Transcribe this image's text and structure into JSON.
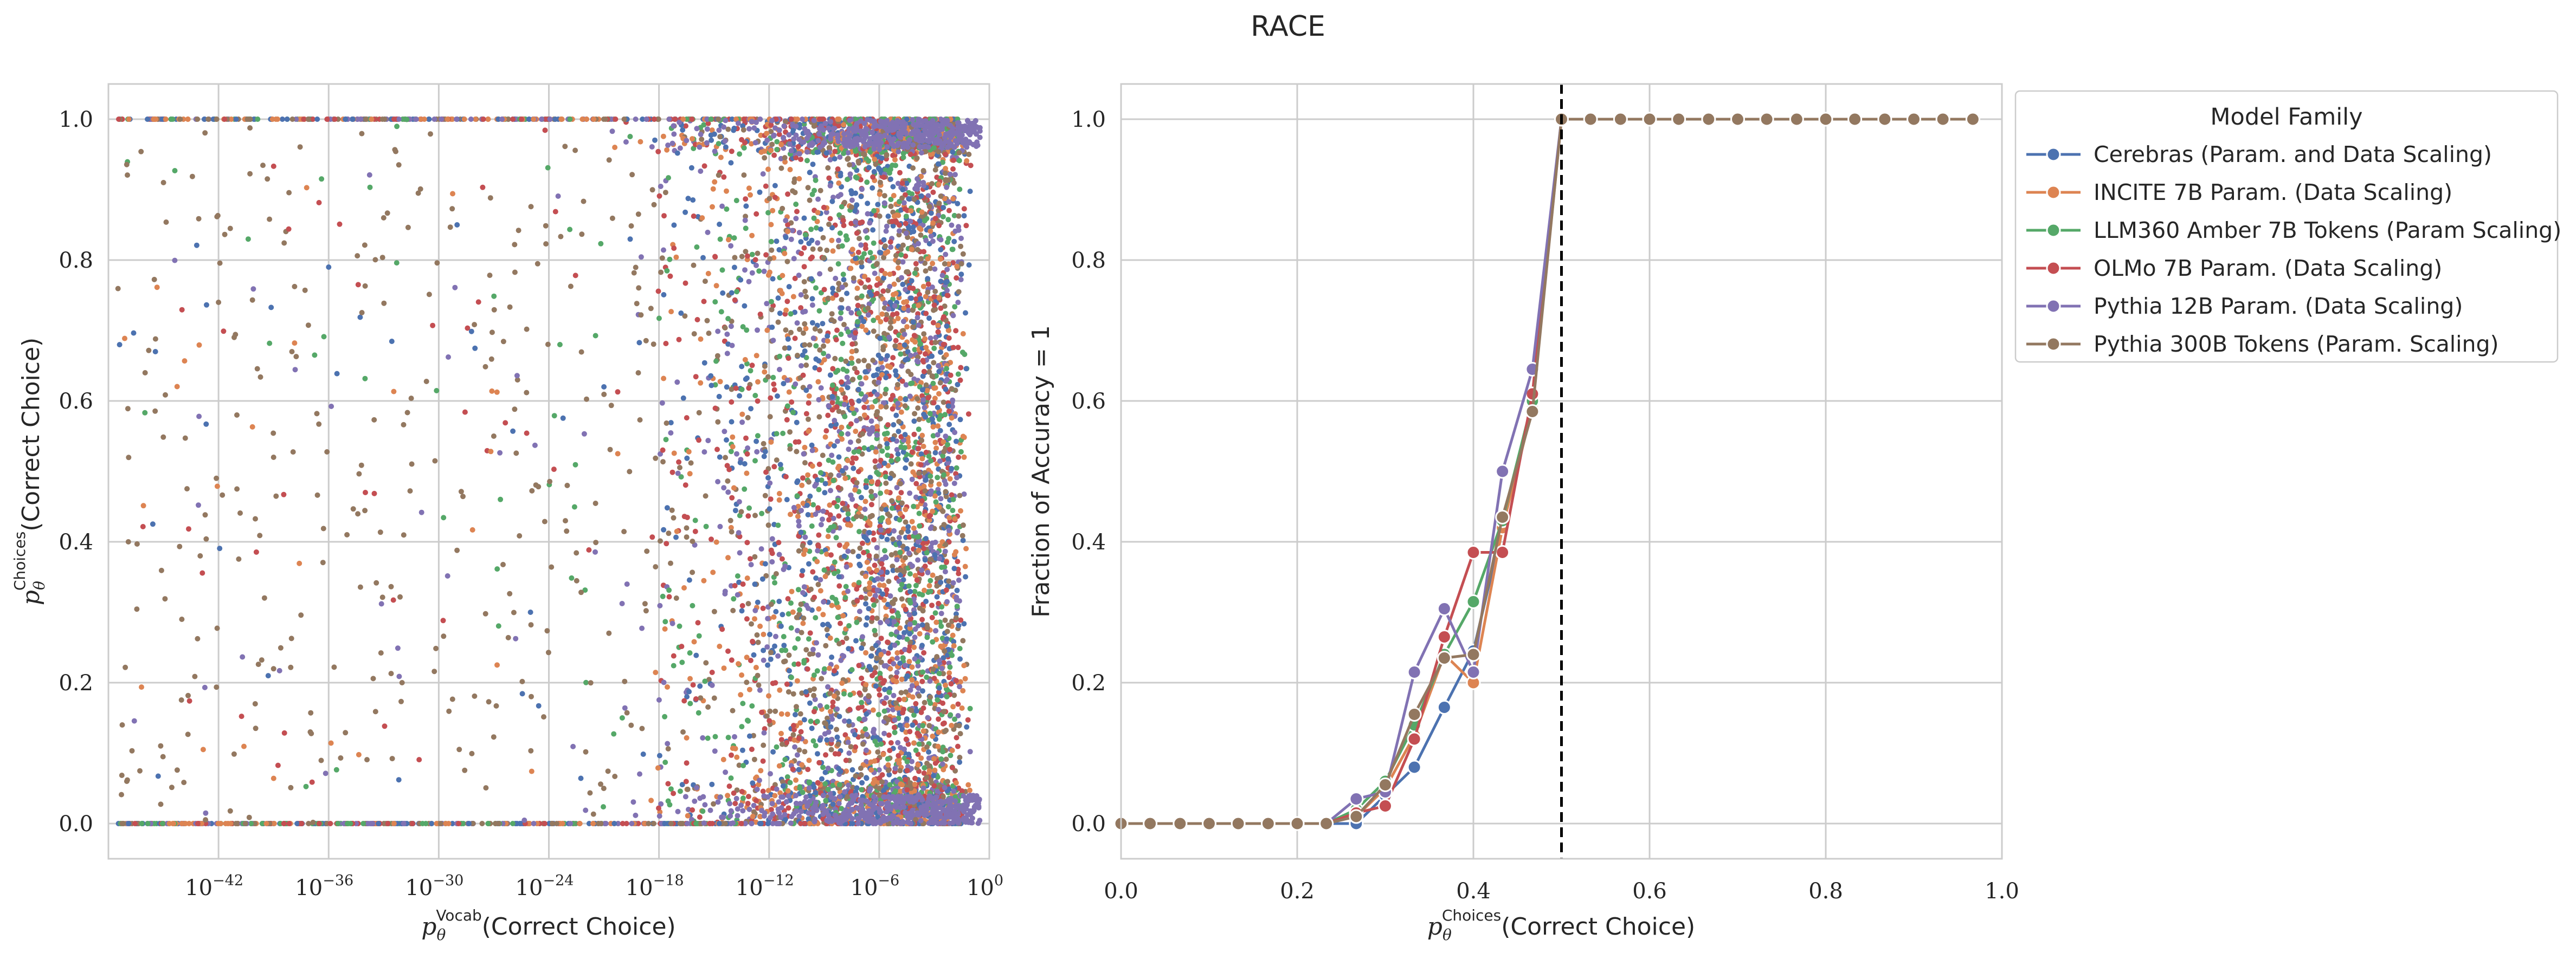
{
  "figure_title": "RACE",
  "colors": {
    "Cerebras": "#4c72b0",
    "INCITE": "#dd8452",
    "LLM360": "#55a868",
    "OLMo": "#c44e52",
    "Pythia12B": "#8172b3",
    "Pythia300B": "#937860"
  },
  "chart_data": [
    {
      "type": "scatter",
      "title": "",
      "xlabel_main": "p",
      "xlabel_sub": "θ",
      "xlabel_sup": "Vocab",
      "xlabel_rest": "(Correct Choice)",
      "ylabel_main": "p",
      "ylabel_sub": "θ",
      "ylabel_sup": "Choices",
      "ylabel_rest": "(Correct Choice)",
      "xscale": "log",
      "xlim_exponent": [
        -48,
        0
      ],
      "ylim": [
        -0.05,
        1.05
      ],
      "xtick_exponents": [
        -42,
        -36,
        -30,
        -24,
        -18,
        -12,
        -6,
        0
      ],
      "xtick_base": "10",
      "yticks": [
        "0.0",
        "0.2",
        "0.4",
        "0.6",
        "0.8",
        "1.0"
      ],
      "grid": true,
      "note_series": [
        "Cerebras",
        "INCITE",
        "LLM360",
        "OLMo",
        "Pythia12B",
        "Pythia300B"
      ],
      "points_sample": [
        {
          "series": "Pythia300B",
          "x_exp": -47,
          "y": 0.06
        },
        {
          "series": "Pythia300B",
          "x_exp": -46,
          "y": 0.64
        },
        {
          "series": "Pythia300B",
          "x_exp": -45,
          "y": 0.91
        },
        {
          "series": "Pythia300B",
          "x_exp": -44,
          "y": 0.29
        },
        {
          "series": "Pythia300B",
          "x_exp": -43,
          "y": 0.38
        },
        {
          "series": "Pythia300B",
          "x_exp": -42,
          "y": 0.74
        },
        {
          "series": "Pythia300B",
          "x_exp": -41,
          "y": 0.58
        },
        {
          "series": "Pythia300B",
          "x_exp": -40,
          "y": 0.17
        },
        {
          "series": "Pythia300B",
          "x_exp": -39,
          "y": 0.52
        },
        {
          "series": "Pythia300B",
          "x_exp": -38,
          "y": 0.67
        },
        {
          "series": "Pythia300B",
          "x_exp": -37,
          "y": 0.13
        },
        {
          "series": "Cerebras",
          "x_exp": -36,
          "y": 0.79
        },
        {
          "series": "Pythia300B",
          "x_exp": -35,
          "y": 0.41
        },
        {
          "series": "OLMo",
          "x_exp": -34,
          "y": 0.47
        },
        {
          "series": "Pythia300B",
          "x_exp": -33,
          "y": 0.86
        },
        {
          "series": "Pythia300B",
          "x_exp": -32,
          "y": 0.2
        },
        {
          "series": "Cerebras",
          "x_exp": -29,
          "y": 0.85
        },
        {
          "series": "Pythia300B",
          "x_exp": -27,
          "y": 0.55
        },
        {
          "series": "Cerebras",
          "x_exp": -25,
          "y": 0.3
        },
        {
          "series": "Pythia300B",
          "x_exp": -23,
          "y": 0.48
        },
        {
          "series": "Cerebras",
          "x_exp": -21,
          "y": 0.62
        },
        {
          "series": "LLM360",
          "x_exp": -20,
          "y": 0.15
        }
      ]
    },
    {
      "type": "line",
      "title": "",
      "xlabel_main": "p",
      "xlabel_sub": "θ",
      "xlabel_sup": "Choices",
      "xlabel_rest": "(Correct Choice)",
      "ylabel": "Fraction of Accuracy = 1",
      "xlim": [
        0.0,
        1.0
      ],
      "ylim": [
        -0.05,
        1.05
      ],
      "xticks": [
        "0.0",
        "0.2",
        "0.4",
        "0.6",
        "0.8",
        "1.0"
      ],
      "yticks": [
        "0.0",
        "0.2",
        "0.4",
        "0.6",
        "0.8",
        "1.0"
      ],
      "grid": true,
      "vline": {
        "x": 0.5,
        "style": "dashed",
        "color": "#000000"
      },
      "legend": {
        "title": "Model Family",
        "placement": "outside right"
      },
      "x": [
        0.0,
        0.033,
        0.067,
        0.1,
        0.133,
        0.167,
        0.2,
        0.233,
        0.267,
        0.3,
        0.333,
        0.367,
        0.4,
        0.433,
        0.467,
        0.5,
        0.533,
        0.567,
        0.6,
        0.633,
        0.667,
        0.7,
        0.733,
        0.767,
        0.8,
        0.833,
        0.867,
        0.9,
        0.933,
        0.967
      ],
      "series": [
        {
          "name": "Cerebras (Param. and Data Scaling)",
          "key": "Cerebras",
          "values": [
            0,
            0,
            0,
            0,
            0,
            0,
            0,
            0,
            0.0,
            0.04,
            0.08,
            0.165,
            0.245,
            0.42,
            0.6,
            1,
            1,
            1,
            1,
            1,
            1,
            1,
            1,
            1,
            1,
            1,
            1,
            1,
            1,
            1
          ]
        },
        {
          "name": "INCITE 7B Param. (Data Scaling)",
          "key": "INCITE",
          "values": [
            0,
            0,
            0,
            0,
            0,
            0,
            0,
            0,
            0.01,
            0.05,
            0.125,
            0.24,
            0.2,
            0.42,
            0.59,
            1,
            1,
            1,
            1,
            1,
            1,
            1,
            1,
            1,
            1,
            1,
            1,
            1,
            1,
            1
          ]
        },
        {
          "name": "LLM360 Amber 7B Tokens (Param Scaling)",
          "key": "LLM360",
          "values": [
            0,
            0,
            0,
            0,
            0,
            0,
            0,
            0,
            0.02,
            0.06,
            0.14,
            0.24,
            0.315,
            0.43,
            0.6,
            1,
            1,
            1,
            1,
            1,
            1,
            1,
            1,
            1,
            1,
            1,
            1,
            1,
            1,
            1
          ]
        },
        {
          "name": "OLMo 7B Param. (Data Scaling)",
          "key": "OLMo",
          "values": [
            0,
            0,
            0,
            0,
            0,
            0,
            0,
            0,
            0.015,
            0.025,
            0.12,
            0.265,
            0.385,
            0.385,
            0.61,
            1,
            1,
            1,
            1,
            1,
            1,
            1,
            1,
            1,
            1,
            1,
            1,
            1,
            1,
            1
          ]
        },
        {
          "name": "Pythia 12B Param. (Data Scaling)",
          "key": "Pythia12B",
          "values": [
            0,
            0,
            0,
            0,
            0,
            0,
            0,
            0,
            0.035,
            0.045,
            0.215,
            0.305,
            0.215,
            0.5,
            0.645,
            1,
            1,
            1,
            1,
            1,
            1,
            1,
            1,
            1,
            1,
            1,
            1,
            1,
            1,
            1
          ]
        },
        {
          "name": "Pythia 300B Tokens (Param. Scaling)",
          "key": "Pythia300B",
          "values": [
            0,
            0,
            0,
            0,
            0,
            0,
            0,
            0,
            0.01,
            0.055,
            0.155,
            0.235,
            0.24,
            0.435,
            0.585,
            1,
            1,
            1,
            1,
            1,
            1,
            1,
            1,
            1,
            1,
            1,
            1,
            1,
            1,
            1
          ]
        }
      ]
    }
  ]
}
